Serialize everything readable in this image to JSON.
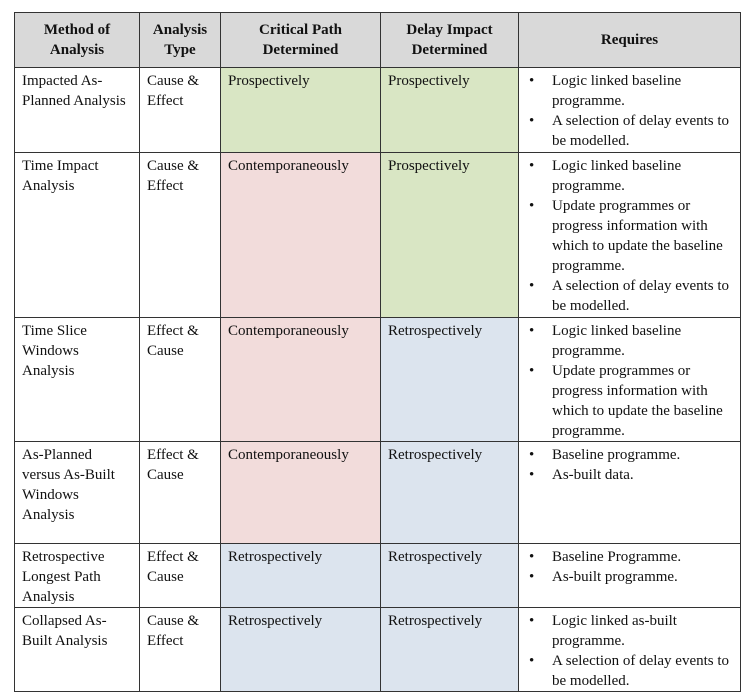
{
  "headers": {
    "method": "Method of Analysis",
    "type": "Analysis Type",
    "critical": "Critical Path Determined",
    "delay": "Delay Impact Determined",
    "requires": "Requires"
  },
  "colors": {
    "header": "#d9d9d9",
    "prospectively": "#d9e6c4",
    "contemporaneously": "#f2dcdb",
    "retrospectively": "#dce4ee"
  },
  "rows": [
    {
      "method": "Impacted As-Planned Analysis",
      "type": "Cause & Effect",
      "critical": "Prospectively",
      "delay": "Prospectively",
      "requires": [
        "Logic linked baseline programme.",
        "A selection of delay events to be modelled."
      ]
    },
    {
      "method": "Time Impact Analysis",
      "type": "Cause & Effect",
      "critical": "Contemporaneously",
      "delay": "Prospectively",
      "requires": [
        "Logic linked baseline programme.",
        "Update programmes or progress information with which to update the baseline programme.",
        "A selection of delay events to be modelled."
      ]
    },
    {
      "method": "Time Slice Windows Analysis",
      "type": "Effect & Cause",
      "critical": "Contemporaneously",
      "delay": "Retrospectively",
      "requires": [
        "Logic linked baseline programme.",
        "Update programmes or progress information with which to update the baseline programme."
      ]
    },
    {
      "method": "As-Planned versus As-Built Windows Analysis",
      "type": "Effect & Cause",
      "critical": "Contemporaneously",
      "delay": "Retrospectively",
      "requires": [
        "Baseline programme.",
        "As-built data."
      ]
    },
    {
      "method": "Retrospective Longest Path Analysis",
      "type": "Effect & Cause",
      "critical": "Retrospectively",
      "delay": "Retrospectively",
      "requires": [
        "Baseline Programme.",
        "As-built programme."
      ]
    },
    {
      "method": "Collapsed As-Built Analysis",
      "type": "Cause & Effect",
      "critical": "Retrospectively",
      "delay": "Retrospectively",
      "requires": [
        "Logic linked as-built programme.",
        "A selection of delay events to be modelled."
      ]
    }
  ]
}
